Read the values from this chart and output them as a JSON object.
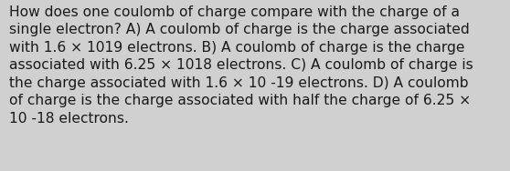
{
  "background_color": "#d0d0d0",
  "text_color": "#1a1a1a",
  "font_size": 11.2,
  "font_family": "DejaVu Sans",
  "lines": [
    "How does one coulomb of charge compare with the charge of a",
    "single electron? A) A coulomb of charge is the charge associated",
    "with 1.6 × 1019 electrons. B) A coulomb of charge is the charge",
    "associated with 6.25 × 1018 electrons. C) A coulomb of charge is",
    "the charge associated with 1.6 × 10 -19 electrons. D) A coulomb",
    "of charge is the charge associated with half the charge of 6.25 ×",
    "10 -18 electrons."
  ],
  "fig_width": 5.58,
  "fig_height": 1.88,
  "dpi": 100
}
